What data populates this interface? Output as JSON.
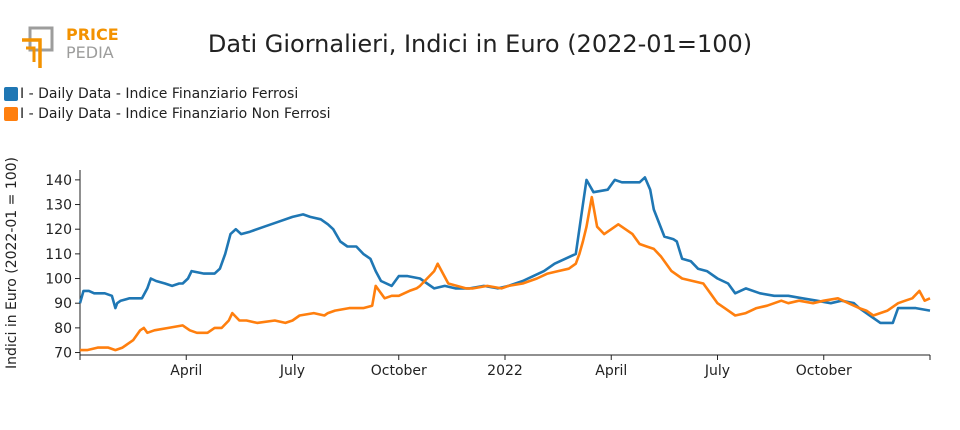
{
  "logo": {
    "line1": "PRICE",
    "line2": "PEDIA"
  },
  "colors": {
    "series1": "#1f77b4",
    "series2": "#ff7f0e",
    "logo_orange": "#f39200",
    "logo_gray": "#9d9d9c"
  },
  "chart_data": {
    "type": "line",
    "title": "Dati Giornalieri, Indici in Euro (2022-01=100)",
    "xlabel": "",
    "ylabel": "Indici in Euro (2022-01 = 100)",
    "ylim": [
      69,
      144
    ],
    "yticks": [
      70,
      80,
      90,
      100,
      110,
      120,
      130,
      140
    ],
    "xlim": [
      0,
      24
    ],
    "xticks": [
      {
        "pos": 3,
        "label": "April"
      },
      {
        "pos": 6,
        "label": "July"
      },
      {
        "pos": 9,
        "label": "October"
      },
      {
        "pos": 12,
        "label": "2022"
      },
      {
        "pos": 15,
        "label": "April"
      },
      {
        "pos": 18,
        "label": "July"
      },
      {
        "pos": 21,
        "label": "October"
      }
    ],
    "series": [
      {
        "name": "I - Daily Data - Indice Finanziario Ferrosi",
        "x": [
          0,
          0.1,
          0.25,
          0.4,
          0.7,
          0.9,
          1.0,
          1.05,
          1.15,
          1.4,
          1.75,
          1.9,
          2.0,
          2.15,
          2.4,
          2.6,
          2.8,
          2.9,
          3.05,
          3.15,
          3.5,
          3.8,
          3.95,
          4.1,
          4.25,
          4.4,
          4.55,
          4.8,
          5.2,
          5.6,
          6.0,
          6.3,
          6.5,
          6.8,
          7.0,
          7.15,
          7.35,
          7.55,
          7.8,
          8.0,
          8.2,
          8.35,
          8.5,
          8.8,
          9.0,
          9.25,
          9.6,
          9.8,
          10.0,
          10.3,
          10.6,
          11.0,
          11.4,
          11.8,
          12.1,
          12.5,
          12.8,
          13.1,
          13.4,
          13.7,
          14.0,
          14.2,
          14.3,
          14.5,
          14.9,
          15.1,
          15.3,
          15.6,
          15.8,
          15.95,
          16.1,
          16.2,
          16.5,
          16.75,
          16.85,
          17.0,
          17.25,
          17.45,
          17.7,
          18.0,
          18.3,
          18.5,
          18.8,
          19.2,
          19.6,
          20.0,
          20.4,
          20.8,
          21.2,
          21.5,
          21.85,
          22.0,
          22.3,
          22.6,
          22.8,
          22.95,
          23.1,
          23.3,
          23.6,
          24.0
        ],
        "values": [
          90,
          95,
          95,
          94,
          94,
          93,
          88,
          90,
          91,
          92,
          92,
          96,
          100,
          99,
          98,
          97,
          98,
          98,
          100,
          103,
          102,
          102,
          104,
          110,
          118,
          120,
          118,
          119,
          121,
          123,
          125,
          126,
          125,
          124,
          122,
          120,
          115,
          113,
          113,
          110,
          108,
          103,
          99,
          97,
          101,
          101,
          100,
          98,
          96,
          97,
          96,
          96,
          97,
          96,
          97,
          99,
          101,
          103,
          106,
          108,
          110,
          130,
          140,
          135,
          136,
          140,
          139,
          139,
          139,
          141,
          136,
          128,
          117,
          116,
          115,
          108,
          107,
          104,
          103,
          100,
          98,
          94,
          96,
          94,
          93,
          93,
          92,
          91,
          90,
          91,
          90,
          88,
          85,
          82,
          82,
          82,
          88,
          88,
          88,
          87
        ]
      },
      {
        "name": "I - Daily Data - Indice Finanziario Non Ferrosi",
        "x": [
          0,
          0.2,
          0.5,
          0.8,
          1.0,
          1.2,
          1.5,
          1.7,
          1.8,
          1.9,
          2.1,
          2.5,
          2.9,
          3.1,
          3.3,
          3.6,
          3.8,
          4.0,
          4.2,
          4.3,
          4.5,
          4.7,
          5.0,
          5.5,
          5.8,
          6.0,
          6.2,
          6.6,
          6.9,
          7.0,
          7.2,
          7.6,
          8.0,
          8.25,
          8.35,
          8.6,
          8.8,
          9.0,
          9.3,
          9.5,
          9.6,
          10.0,
          10.1,
          10.4,
          10.9,
          11.1,
          11.5,
          11.9,
          12.1,
          12.5,
          12.9,
          13.2,
          13.5,
          13.8,
          14.0,
          14.1,
          14.2,
          14.3,
          14.45,
          14.6,
          14.8,
          15.0,
          15.2,
          15.4,
          15.6,
          15.8,
          16.0,
          16.2,
          16.4,
          16.7,
          17.0,
          17.3,
          17.6,
          17.8,
          18.0,
          18.2,
          18.5,
          18.8,
          19.1,
          19.4,
          19.8,
          20.0,
          20.3,
          20.7,
          21.0,
          21.4,
          21.7,
          22.0,
          22.2,
          22.4,
          22.8,
          23.1,
          23.3,
          23.5,
          23.7,
          23.85,
          24.0
        ],
        "values": [
          71,
          71,
          72,
          72,
          71,
          72,
          75,
          79,
          80,
          78,
          79,
          80,
          81,
          79,
          78,
          78,
          80,
          80,
          83,
          86,
          83,
          83,
          82,
          83,
          82,
          83,
          85,
          86,
          85,
          86,
          87,
          88,
          88,
          89,
          97,
          92,
          93,
          93,
          95,
          96,
          97,
          103,
          106,
          98,
          96,
          96,
          97,
          96,
          97,
          98,
          100,
          102,
          103,
          104,
          106,
          110,
          115,
          121,
          133,
          121,
          118,
          120,
          122,
          120,
          118,
          114,
          113,
          112,
          109,
          103,
          100,
          99,
          98,
          94,
          90,
          88,
          85,
          86,
          88,
          89,
          91,
          90,
          91,
          90,
          91,
          92,
          90,
          88,
          87,
          85,
          87,
          90,
          91,
          92,
          95,
          91,
          92
        ]
      }
    ]
  }
}
